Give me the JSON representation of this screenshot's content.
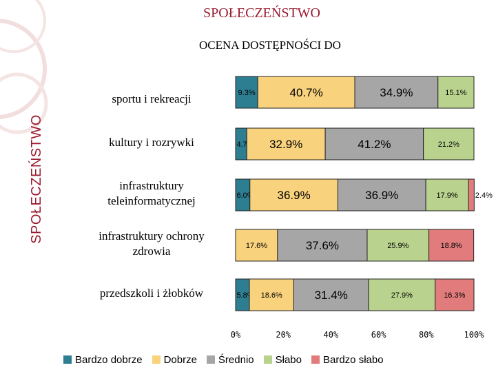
{
  "slide": {
    "title": "SPOŁECZEŃSTWO",
    "sidebar_label": "SPOŁECZEŃSTWO"
  },
  "colors": {
    "accent": "#9b1b2f",
    "series": [
      "#2e7e92",
      "#f9d27e",
      "#a6a6a6",
      "#b9d38e",
      "#e27c7c"
    ]
  },
  "chart_data": {
    "type": "bar",
    "orientation": "horizontal",
    "stacked": "percent",
    "title": "OCENA DOSTĘPNOŚCI DO",
    "categories": [
      "sportu i rekreacji",
      "kultury i rozrywki",
      "infrastruktury teleinformatycznej",
      "infrastruktury ochrony zdrowia",
      "przedszkoli i żłobków"
    ],
    "category_lines": [
      [
        "sportu i rekreacji"
      ],
      [
        "kultury i rozrywki"
      ],
      [
        "infrastruktury",
        "teleinformatycznej"
      ],
      [
        "infrastruktury ochrony",
        "zdrowia"
      ],
      [
        "przedszkoli i żłobków"
      ]
    ],
    "series": [
      {
        "name": "Bardzo dobrze",
        "values": [
          9.3,
          4.7,
          6.0,
          0,
          5.8
        ]
      },
      {
        "name": "Dobrze",
        "values": [
          40.7,
          32.9,
          36.9,
          17.6,
          18.6
        ]
      },
      {
        "name": "Średnio",
        "values": [
          34.9,
          41.2,
          36.9,
          37.6,
          31.4
        ]
      },
      {
        "name": "Słabo",
        "values": [
          15.1,
          21.2,
          17.9,
          25.9,
          27.9
        ]
      },
      {
        "name": "Bardzo słabo",
        "values": [
          0,
          0,
          2.4,
          18.8,
          16.3
        ]
      }
    ],
    "data_labels": [
      [
        "9.3%",
        "40.7%",
        "34.9%",
        "15.1%",
        ""
      ],
      [
        "4.7%",
        "32.9%",
        "41.2%",
        "21.2%",
        ""
      ],
      [
        "6.0%",
        "36.9%",
        "36.9%",
        "17.9%",
        "2.4%"
      ],
      [
        "",
        "17.6%",
        "37.6%",
        "25.9%",
        "18.8%"
      ],
      [
        "5.8%",
        "18.6%",
        "31.4%",
        "27.9%",
        "16.3%"
      ]
    ],
    "xlim": [
      0,
      100
    ],
    "x_ticks": [
      "0%",
      "20%",
      "40%",
      "60%",
      "80%",
      "100%"
    ],
    "grid": false,
    "legend": "bottom"
  }
}
